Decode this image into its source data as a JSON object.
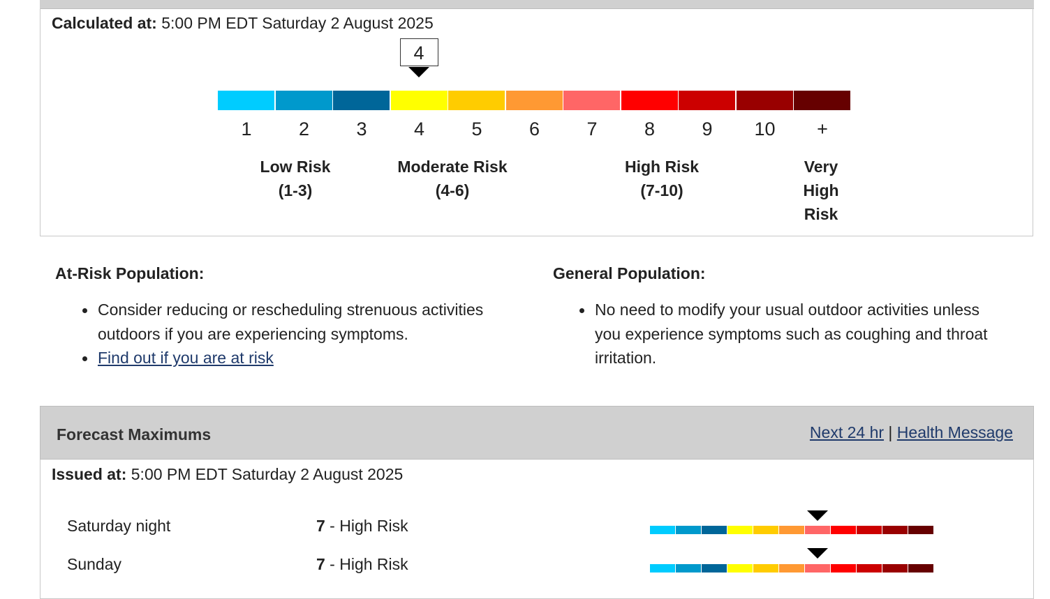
{
  "current": {
    "calculated_label": "Calculated at:",
    "calculated_value": "5:00 PM EDT Saturday 2 August 2025",
    "index_value": "4",
    "index_level": 4
  },
  "scale": {
    "colors": [
      "#00ccff",
      "#0099cc",
      "#006699",
      "#ffff00",
      "#ffcc00",
      "#ff9933",
      "#ff6666",
      "#ff0000",
      "#cc0000",
      "#990000",
      "#660000"
    ],
    "numbers": [
      "1",
      "2",
      "3",
      "4",
      "5",
      "6",
      "7",
      "8",
      "9",
      "10",
      "+"
    ]
  },
  "risk_labels": [
    {
      "line1": "Low Risk",
      "line2": "(1-3)"
    },
    {
      "line1": "Moderate Risk",
      "line2": "(4-6)"
    },
    {
      "line1": "High Risk",
      "line2": "(7-10)"
    },
    {
      "line1": "Very",
      "line2": "High",
      "line3": "Risk"
    }
  ],
  "at_risk": {
    "heading": "At-Risk Population:",
    "item1_line1": "Consider reducing or rescheduling strenuous activities",
    "item1_line2": "outdoors if you are experiencing symptoms.",
    "link": "Find out if you are at risk"
  },
  "general": {
    "heading": "General Population:",
    "item1_line1": "No need to modify your usual outdoor activities unless",
    "item1_line2": "you experience symptoms such as coughing and throat",
    "item1_line3": "irritation."
  },
  "forecast": {
    "title": "Forecast Maximums",
    "link_next": "Next 24 hr",
    "separator": "|",
    "link_health": "Health Message",
    "issued_label": "Issued at:",
    "issued_value": "5:00 PM EDT Saturday 2 August 2025",
    "rows": [
      {
        "day": "Saturday night",
        "value": "7",
        "label": " - High Risk",
        "level": 7
      },
      {
        "day": "Sunday",
        "value": "7",
        "label": " - High Risk",
        "level": 7
      }
    ]
  }
}
